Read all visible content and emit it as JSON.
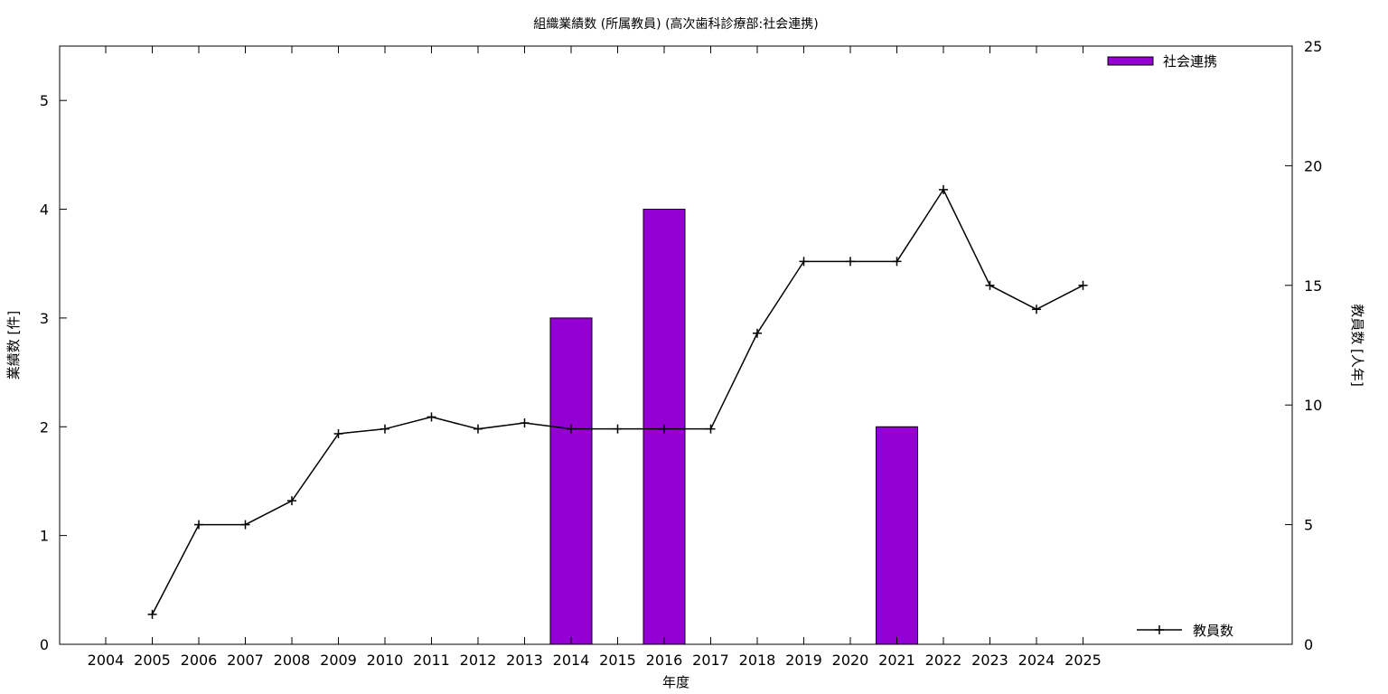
{
  "chart_data": {
    "type": "bar",
    "title": "組織業績数 (所属教員) (高次歯科診療部:社会連携)",
    "xlabel": "年度",
    "ylabel": "業績数 [件]",
    "y2label": "教員数 [人年]",
    "categories": [
      "2004",
      "2005",
      "2006",
      "2007",
      "2008",
      "2009",
      "2010",
      "2011",
      "2012",
      "2013",
      "2014",
      "2015",
      "2016",
      "2017",
      "2018",
      "2019",
      "2020",
      "2021",
      "2022",
      "2023",
      "2024",
      "2025"
    ],
    "ylim": [
      0,
      5.5
    ],
    "y_ticks": [
      0,
      1,
      2,
      3,
      4,
      5
    ],
    "y2lim": [
      0,
      25
    ],
    "y2_ticks": [
      0,
      5,
      10,
      15,
      20,
      25
    ],
    "grid": false,
    "bar_series": {
      "name": "社会連携",
      "color": "#9400d3",
      "values": [
        0,
        0,
        0,
        0,
        0,
        0,
        0,
        0,
        0,
        0,
        3,
        0,
        4,
        0,
        0,
        0,
        0,
        2,
        0,
        0,
        0,
        0
      ]
    },
    "line_series": {
      "name": "教員数",
      "color": "#000000",
      "axis": "y2",
      "x": [
        "2005",
        "2006",
        "2007",
        "2008",
        "2009",
        "2010",
        "2011",
        "2012",
        "2013",
        "2014",
        "2015",
        "2016",
        "2017",
        "2018",
        "2019",
        "2020",
        "2021",
        "2022",
        "2023",
        "2024",
        "2025"
      ],
      "values": [
        1.25,
        5,
        5,
        6,
        8.8,
        9,
        9.5,
        9,
        9.25,
        9,
        9,
        9,
        9,
        13,
        16,
        16,
        16,
        19,
        15,
        14,
        15
      ]
    },
    "legend": {
      "bar_position": "top-right",
      "line_position": "bottom-right"
    }
  }
}
